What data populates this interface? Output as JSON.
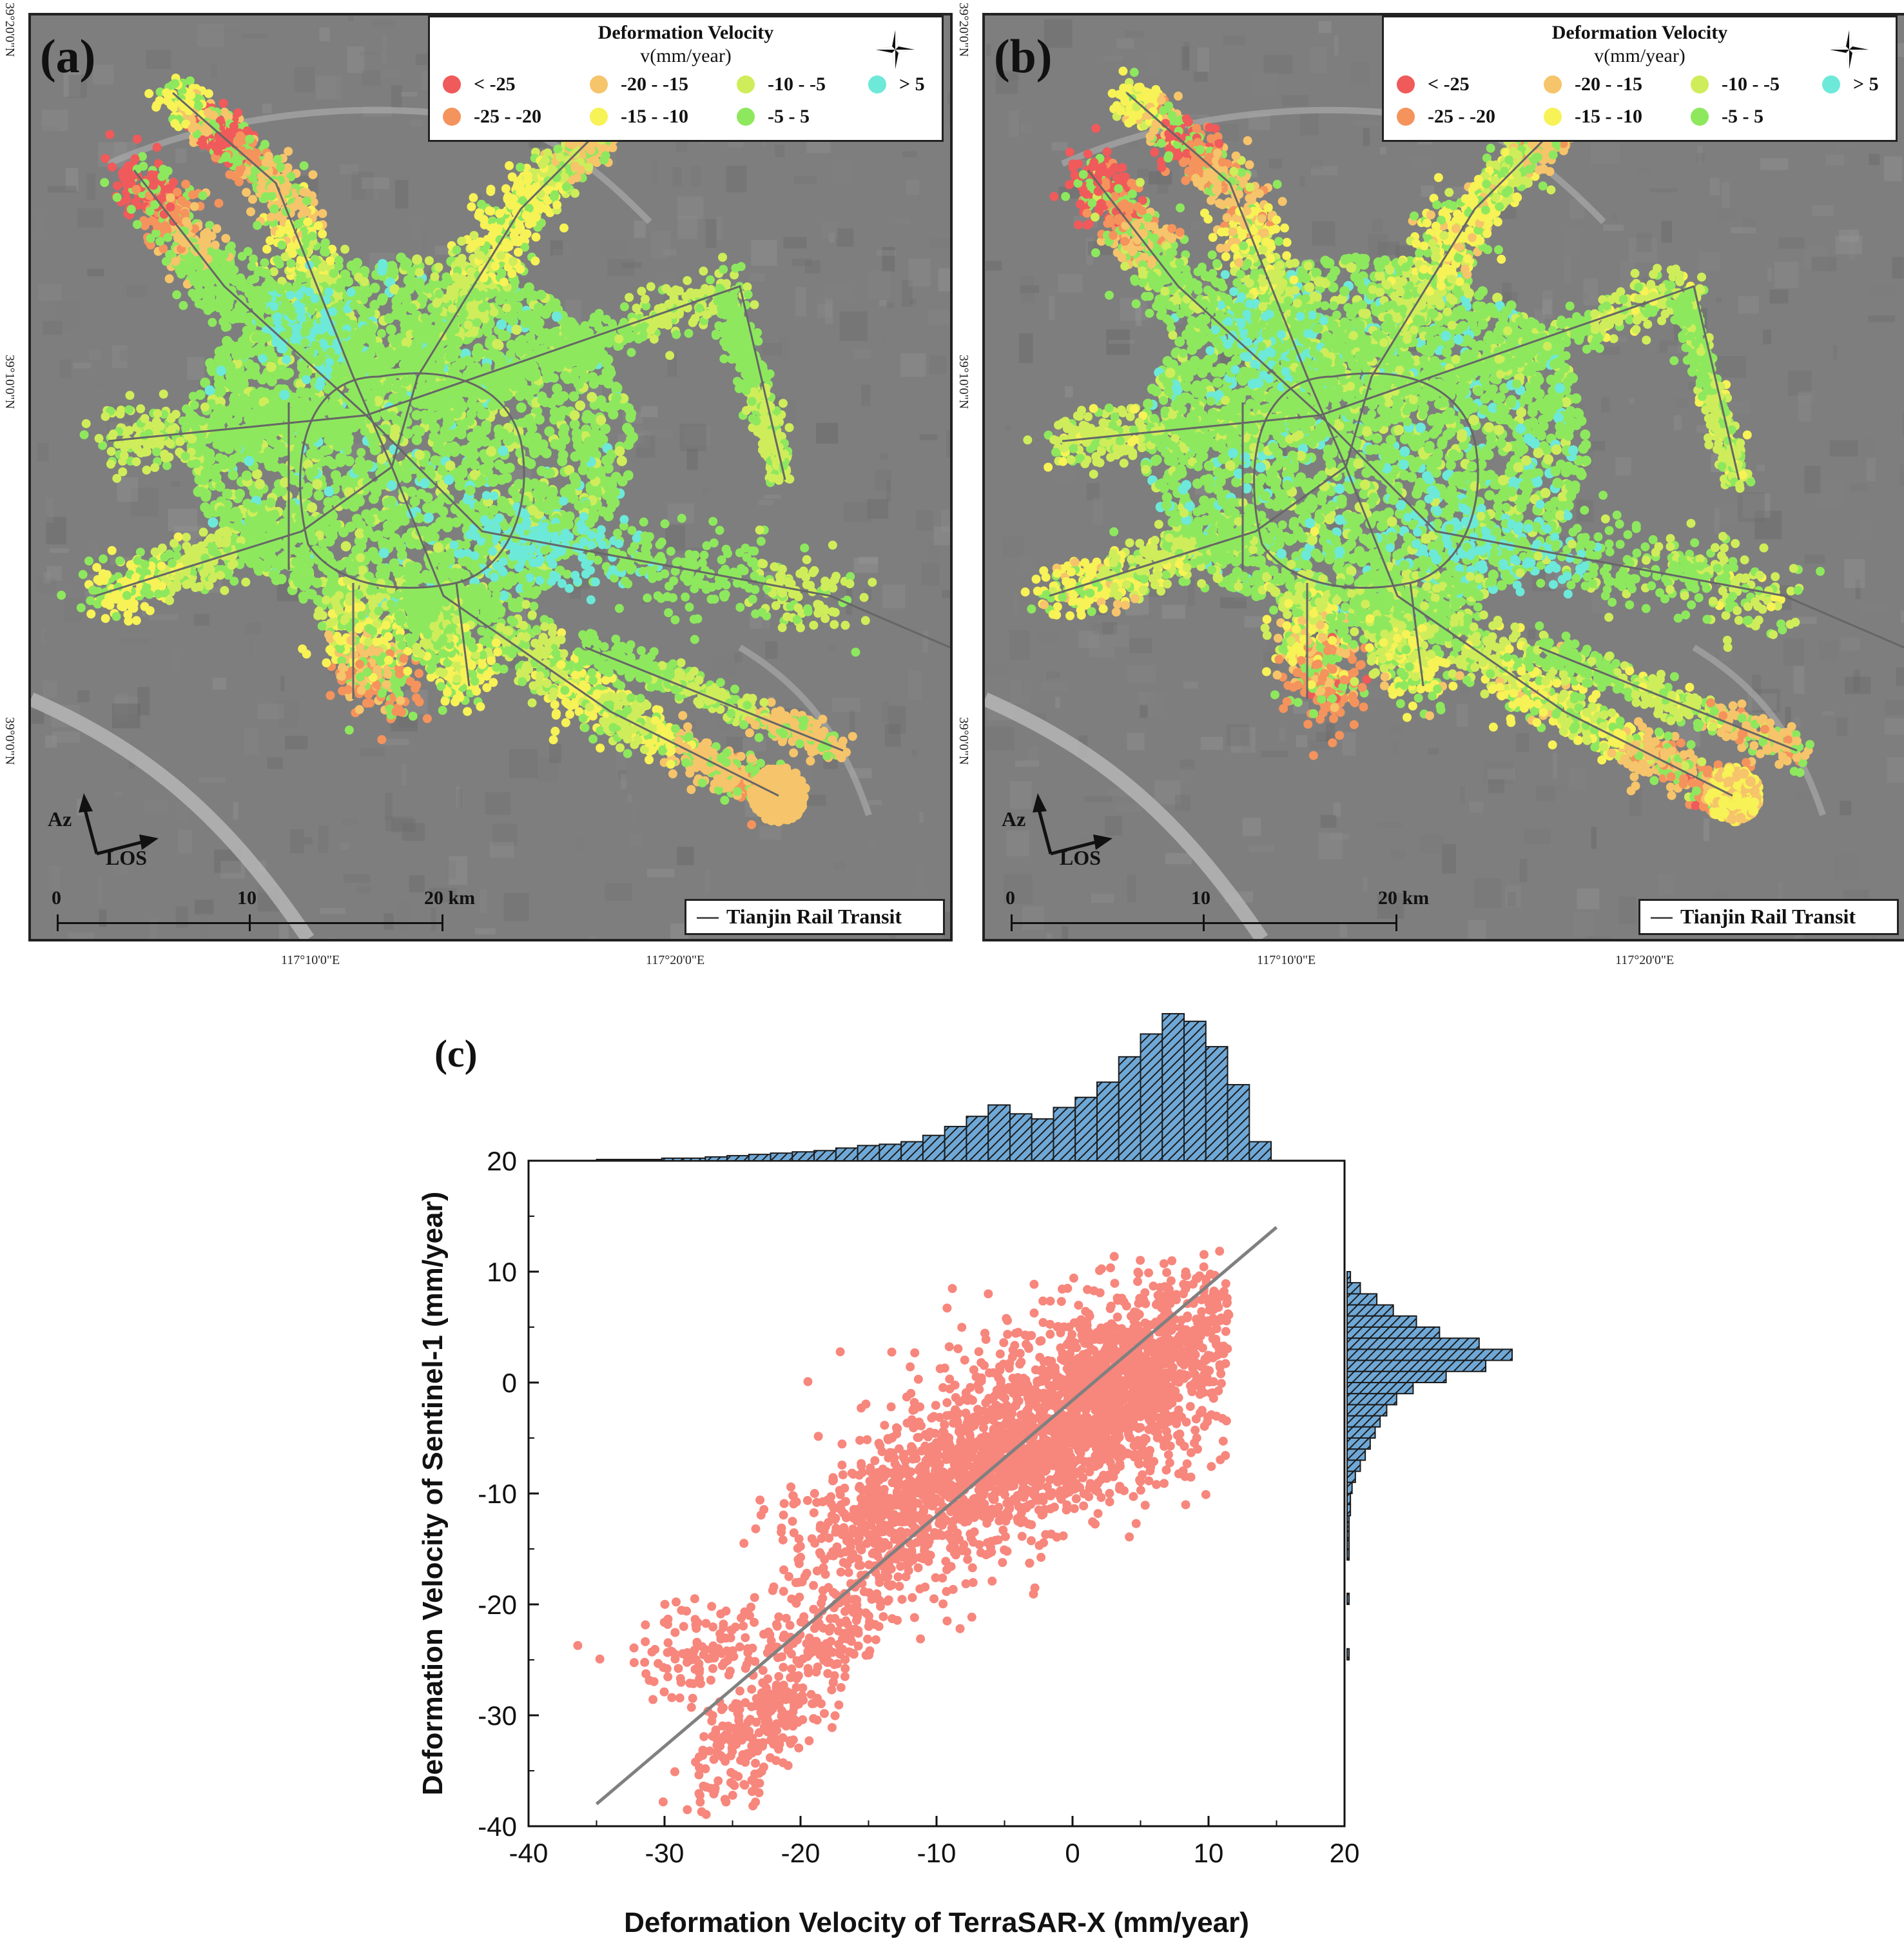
{
  "panels": [
    {
      "letter": "(a)"
    },
    {
      "letter": "(b)"
    }
  ],
  "legend": {
    "title": "Deformation Velocity",
    "unit": "v(mm/year)",
    "classes": [
      {
        "label": "< -25",
        "color": "#f05a5a"
      },
      {
        "label": "-25 - -20",
        "color": "#f5935c"
      },
      {
        "label": "-20 - -15",
        "color": "#f6c46a"
      },
      {
        "label": "-15 - -10",
        "color": "#f7f256"
      },
      {
        "label": "-10 - -5",
        "color": "#cfed5a"
      },
      {
        "label": "-5 - 5",
        "color": "#8ee85e"
      },
      {
        "label": "> 5",
        "color": "#6de9d9"
      }
    ]
  },
  "rail_legend": "Tianjin Rail Transit",
  "scale_bar": {
    "labels": [
      "0",
      "10",
      "20 km"
    ]
  },
  "arrows": {
    "azimuth": "Az",
    "los": "LOS"
  },
  "coordinates": {
    "latitudes": [
      "39°20'0\"N",
      "39°10'0\"N",
      "39°0'0\"N"
    ],
    "longitudes": [
      "117°10'0\"E",
      "117°20'0\"E"
    ]
  },
  "panel_c": {
    "letter": "(c)"
  },
  "chart_data": {
    "type": "scatter",
    "xlabel": "Deformation Velocity of TerraSAR-X (mm/year)",
    "ylabel": "Deformation Velocity of Sentinel-1 (mm/year)",
    "xlim": [
      -40,
      20
    ],
    "ylim": [
      -40,
      20
    ],
    "xticks": [
      "-40",
      "-30",
      "-20",
      "-10",
      "0",
      "10",
      "20"
    ],
    "yticks": [
      "-40",
      "-30",
      "-20",
      "-10",
      "0",
      "10",
      "20"
    ],
    "point_color": "#f7867c",
    "fit_line": {
      "x": [
        -35,
        15
      ],
      "y": [
        -38,
        14
      ],
      "color": "#808080"
    },
    "clusters": [
      {
        "x_center": -2,
        "y_center": -4,
        "x_spread": 7,
        "y_spread": 5,
        "slope": 0.55,
        "count": 1400
      },
      {
        "x_center": 4,
        "y_center": 0,
        "x_spread": 5,
        "y_spread": 4,
        "slope": 0.6,
        "count": 900
      },
      {
        "x_center": -12,
        "y_center": -10,
        "x_spread": 5,
        "y_spread": 3,
        "slope": 0.5,
        "count": 500
      },
      {
        "x_center": -27,
        "y_center": -24,
        "x_spread": 3,
        "y_spread": 2,
        "slope": 0.2,
        "count": 130
      },
      {
        "x_center": -23,
        "y_center": -31,
        "x_spread": 3,
        "y_spread": 3,
        "slope": 1.0,
        "count": 220
      },
      {
        "x_center": -17,
        "y_center": -22,
        "x_spread": 4,
        "y_spread": 3,
        "slope": 1.2,
        "count": 200
      }
    ],
    "hist_color": "#6fa8d6",
    "top_hist": {
      "bin_start": -35,
      "bin_width": 1.6,
      "counts": [
        1,
        1,
        1,
        2,
        2,
        3,
        4,
        5,
        6,
        7,
        8,
        10,
        12,
        13,
        15,
        20,
        27,
        35,
        44,
        37,
        33,
        42,
        50,
        62,
        82,
        100,
        116,
        110,
        90,
        60,
        15
      ]
    },
    "right_hist": {
      "bin_start": 10,
      "bin_width": -1,
      "counts": [
        2,
        8,
        18,
        28,
        42,
        56,
        80,
        100,
        84,
        60,
        40,
        30,
        24,
        20,
        17,
        14,
        11,
        8,
        5,
        3,
        2,
        2,
        1,
        1,
        1,
        1,
        0,
        0,
        0,
        1,
        0,
        0,
        0,
        0,
        1,
        0,
        0,
        0,
        0,
        0
      ]
    }
  }
}
